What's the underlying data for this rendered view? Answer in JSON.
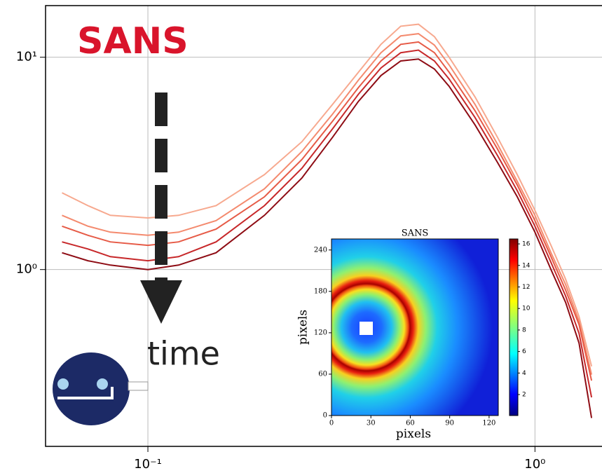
{
  "chart_data": [
    {
      "type": "line",
      "title": "SANS",
      "annotation": "time",
      "log_x": true,
      "log_y": true,
      "grid": true,
      "xlim": [
        0.0544,
        1.49
      ],
      "ylim": [
        0.147,
        17.5
      ],
      "xticks": [
        {
          "value": 0.1,
          "label": "10⁻¹"
        },
        {
          "value": 1,
          "label": "10⁰"
        }
      ],
      "yticks": [
        {
          "value": 1,
          "label": "10⁰"
        },
        {
          "value": 10,
          "label": "10¹"
        }
      ],
      "x": [
        0.06,
        0.07,
        0.08,
        0.1,
        0.12,
        0.15,
        0.2,
        0.25,
        0.3,
        0.35,
        0.4,
        0.45,
        0.5,
        0.55,
        0.6,
        0.7,
        0.8,
        0.9,
        1.0,
        1.1,
        1.2,
        1.3,
        1.4
      ],
      "series": [
        {
          "color": "#f7a98f",
          "values": [
            2.3,
            2.0,
            1.8,
            1.75,
            1.8,
            2.0,
            2.8,
            4.0,
            6.0,
            8.5,
            11.5,
            14.0,
            14.3,
            12.5,
            10.0,
            6.5,
            4.2,
            2.8,
            1.9,
            1.3,
            0.9,
            0.6,
            0.35
          ]
        },
        {
          "color": "#f48a6e",
          "values": [
            1.8,
            1.6,
            1.5,
            1.45,
            1.5,
            1.7,
            2.4,
            3.6,
            5.4,
            7.8,
            10.5,
            12.6,
            12.9,
            11.4,
            9.2,
            6.0,
            3.9,
            2.6,
            1.8,
            1.2,
            0.85,
            0.57,
            0.32
          ]
        },
        {
          "color": "#e65a46",
          "values": [
            1.6,
            1.45,
            1.35,
            1.3,
            1.35,
            1.55,
            2.2,
            3.3,
            5.0,
            7.2,
            9.6,
            11.5,
            11.8,
            10.5,
            8.5,
            5.6,
            3.7,
            2.5,
            1.7,
            1.15,
            0.8,
            0.55,
            0.3
          ]
        },
        {
          "color": "#c7282a",
          "values": [
            1.35,
            1.25,
            1.15,
            1.1,
            1.15,
            1.35,
            2.0,
            3.0,
            4.6,
            6.7,
            8.9,
            10.5,
            10.8,
            9.6,
            7.9,
            5.2,
            3.45,
            2.35,
            1.6,
            1.08,
            0.75,
            0.5,
            0.25
          ]
        },
        {
          "color": "#8e0c14",
          "values": [
            1.2,
            1.1,
            1.05,
            1.0,
            1.05,
            1.2,
            1.8,
            2.7,
            4.2,
            6.2,
            8.2,
            9.6,
            9.8,
            8.8,
            7.3,
            4.8,
            3.2,
            2.2,
            1.5,
            1.0,
            0.7,
            0.45,
            0.2
          ]
        }
      ]
    },
    {
      "type": "heatmap",
      "title": "SANS",
      "xlabel": "pixels",
      "ylabel": "pixels",
      "xlim": [
        0,
        127
      ],
      "ylim": [
        0,
        256
      ],
      "clim": [
        0.05,
        16.46
      ],
      "xticks": [
        0,
        30,
        60,
        90,
        120
      ],
      "yticks": [
        0,
        60,
        120,
        180,
        240
      ],
      "cticks": [
        2,
        4,
        6,
        8,
        10,
        12,
        14,
        16
      ]
    }
  ]
}
